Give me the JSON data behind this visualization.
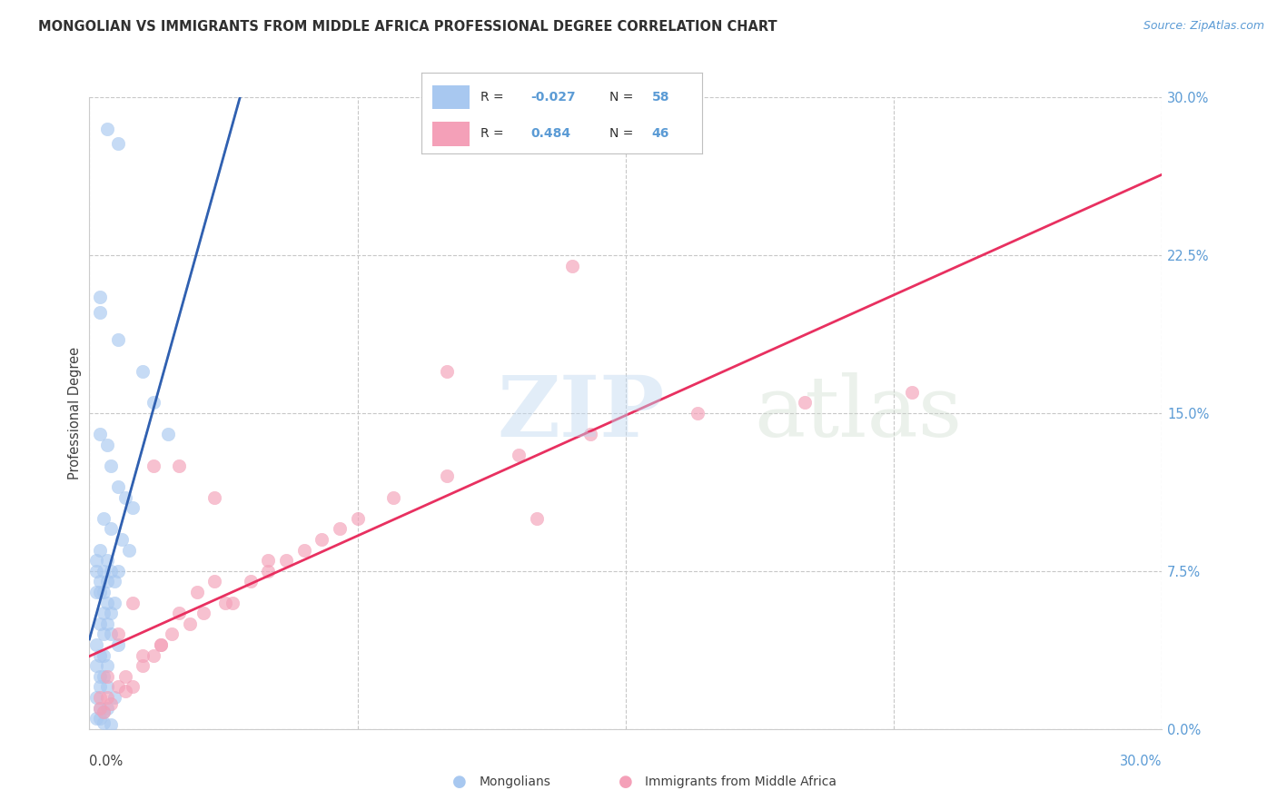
{
  "title": "MONGOLIAN VS IMMIGRANTS FROM MIDDLE AFRICA PROFESSIONAL DEGREE CORRELATION CHART",
  "source": "Source: ZipAtlas.com",
  "ylabel": "Professional Degree",
  "ytick_vals": [
    0.0,
    7.5,
    15.0,
    22.5,
    30.0
  ],
  "xlim": [
    0.0,
    30.0
  ],
  "ylim": [
    0.0,
    30.0
  ],
  "legend_mongolians": "Mongolians",
  "legend_africa": "Immigrants from Middle Africa",
  "R_mongolians": -0.027,
  "N_mongolians": 58,
  "R_africa": 0.484,
  "N_africa": 46,
  "color_mongolians": "#A8C8F0",
  "color_africa": "#F4A0B8",
  "color_line_mongolians": "#3060B0",
  "color_line_africa": "#E83060",
  "color_dashed": "#A8C8F0",
  "background_color": "#FFFFFF",
  "watermark_zip": "ZIP",
  "watermark_atlas": "atlas",
  "title_fontsize": 10.5,
  "label_fontsize": 10,
  "tick_fontsize": 10,
  "mongolians_x": [
    0.5,
    0.8,
    0.3,
    0.3,
    0.8,
    1.5,
    1.8,
    2.2,
    0.3,
    0.5,
    0.6,
    0.8,
    1.0,
    1.2,
    0.4,
    0.6,
    0.9,
    1.1,
    0.3,
    0.5,
    0.2,
    0.4,
    0.6,
    0.8,
    0.2,
    0.3,
    0.5,
    0.7,
    0.2,
    0.4,
    0.3,
    0.5,
    0.7,
    0.4,
    0.6,
    0.3,
    0.5,
    0.4,
    0.6,
    0.8,
    0.2,
    0.4,
    0.3,
    0.5,
    0.2,
    0.3,
    0.4,
    0.3,
    0.5,
    0.7,
    0.2,
    0.3,
    0.5,
    0.4,
    0.3,
    0.2,
    0.4,
    0.6
  ],
  "mongolians_y": [
    28.5,
    27.8,
    20.5,
    19.8,
    18.5,
    17.0,
    15.5,
    14.0,
    14.0,
    13.5,
    12.5,
    11.5,
    11.0,
    10.5,
    10.0,
    9.5,
    9.0,
    8.5,
    8.5,
    8.0,
    8.0,
    7.5,
    7.5,
    7.5,
    7.5,
    7.0,
    7.0,
    7.0,
    6.5,
    6.5,
    6.5,
    6.0,
    6.0,
    5.5,
    5.5,
    5.0,
    5.0,
    4.5,
    4.5,
    4.0,
    4.0,
    3.5,
    3.5,
    3.0,
    3.0,
    2.5,
    2.5,
    2.0,
    2.0,
    1.5,
    1.5,
    1.0,
    1.0,
    0.8,
    0.5,
    0.5,
    0.3,
    0.2
  ],
  "africa_x": [
    0.3,
    0.5,
    0.8,
    1.0,
    1.2,
    1.5,
    1.8,
    2.0,
    2.3,
    2.8,
    3.2,
    3.8,
    4.5,
    5.0,
    5.5,
    6.5,
    7.5,
    8.5,
    10.0,
    12.0,
    14.0,
    17.0,
    20.0,
    23.0,
    0.4,
    0.6,
    1.0,
    1.5,
    2.0,
    2.5,
    3.0,
    3.5,
    4.0,
    5.0,
    6.0,
    7.0,
    0.3,
    0.5,
    0.8,
    1.2,
    1.8,
    2.5,
    3.5,
    10.0,
    13.5,
    12.5
  ],
  "africa_y": [
    1.0,
    1.5,
    2.0,
    2.5,
    2.0,
    3.0,
    3.5,
    4.0,
    4.5,
    5.0,
    5.5,
    6.0,
    7.0,
    7.5,
    8.0,
    9.0,
    10.0,
    11.0,
    12.0,
    13.0,
    14.0,
    15.0,
    15.5,
    16.0,
    0.8,
    1.2,
    1.8,
    3.5,
    4.0,
    5.5,
    6.5,
    7.0,
    6.0,
    8.0,
    8.5,
    9.5,
    1.5,
    2.5,
    4.5,
    6.0,
    12.5,
    12.5,
    11.0,
    17.0,
    22.0,
    10.0
  ]
}
